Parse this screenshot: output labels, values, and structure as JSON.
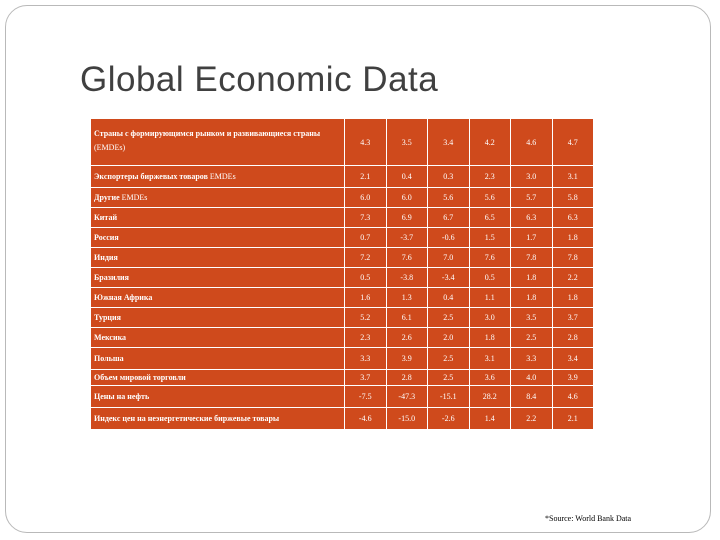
{
  "title": "Global Economic Data",
  "table": {
    "header": {
      "label_line1": "Страны с формирующимся рынком и   развивающиеся страны",
      "label_line2": "(EMDEs)",
      "values": [
        "4.3",
        "3.5",
        "3.4",
        "4.2",
        "4.6",
        "4.7"
      ]
    },
    "rows": [
      {
        "label": "Экспортеры биржевых товаров",
        "sub": "EMDEs",
        "values": [
          "2.1",
          "0.4",
          "0.3",
          "2.3",
          "3.0",
          "3.1"
        ]
      },
      {
        "label": "Другие",
        "sub": "EMDEs",
        "values": [
          "6.0",
          "6.0",
          "5.6",
          "5.6",
          "5.7",
          "5.8"
        ]
      },
      {
        "label": "Китай",
        "values": [
          "7.3",
          "6.9",
          "6.7",
          "6.5",
          "6.3",
          "6.3"
        ]
      },
      {
        "label": "Россия",
        "values": [
          "0.7",
          "-3.7",
          "-0.6",
          "1.5",
          "1.7",
          "1.8"
        ]
      },
      {
        "label": "Индия",
        "values": [
          "7.2",
          "7.6",
          "7.0",
          "7.6",
          "7.8",
          "7.8"
        ]
      },
      {
        "label": "Бразилия",
        "values": [
          "0.5",
          "-3.8",
          "-3.4",
          "0.5",
          "1.8",
          "2.2"
        ]
      },
      {
        "label": "Южная Африка",
        "values": [
          "1.6",
          "1.3",
          "0.4",
          "1.1",
          "1.8",
          "1.8"
        ]
      },
      {
        "label": "Турция",
        "values": [
          "5.2",
          "6.1",
          "2.5",
          "3.0",
          "3.5",
          "3.7"
        ]
      },
      {
        "label": "Мексика",
        "values": [
          "2.3",
          "2.6",
          "2.0",
          "1.8",
          "2.5",
          "2.8"
        ]
      },
      {
        "label": "Польша",
        "values": [
          "3.3",
          "3.9",
          "2.5",
          "3.1",
          "3.3",
          "3.4"
        ]
      },
      {
        "label": "Объем мировой торговли",
        "values": [
          "3.7",
          "2.8",
          "2.5",
          "3.6",
          "4.0",
          "3.9"
        ]
      },
      {
        "label": "Цены на нефть",
        "values": [
          "-7.5",
          "-47.3",
          "-15.1",
          "28.2",
          "8.4",
          "4.6"
        ]
      },
      {
        "label": "Индекс цен на неэнергетические биржевые товары",
        "values": [
          "-4.6",
          "-15.0",
          "-2.6",
          "1.4",
          "2.2",
          "2.1"
        ]
      }
    ]
  },
  "source": "*Source: World Bank Data"
}
